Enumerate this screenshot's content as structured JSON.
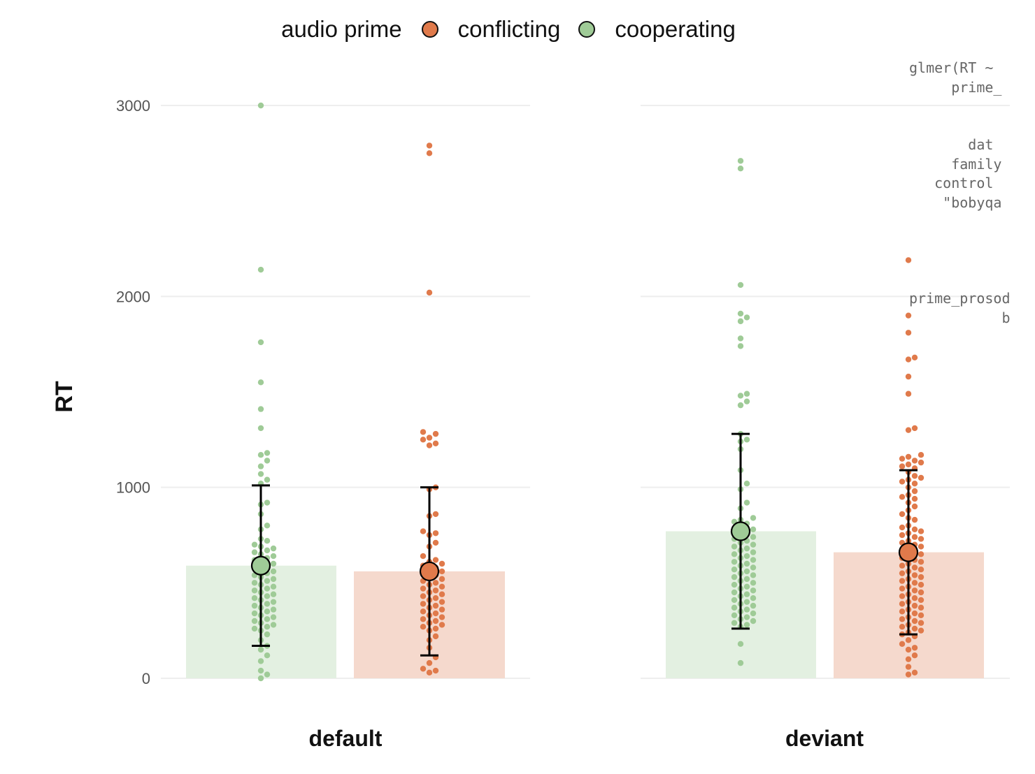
{
  "legend": {
    "title": "audio prime",
    "items": [
      {
        "label": "conflicting",
        "color": "#E07A4B"
      },
      {
        "label": "cooperating",
        "color": "#9FCB97"
      }
    ]
  },
  "code_lines": [
    "glmer(RT ~",
    "     prime_",
    "",
    "",
    "       dat",
    "     family",
    "   control",
    "    \"bobyqa",
    "",
    "",
    "",
    "",
    "prime_prosod",
    "           b"
  ],
  "chart_data": {
    "type": "bar",
    "xlabel": "",
    "ylabel": "RT",
    "ylim": [
      0,
      3000
    ],
    "yticks": [
      0,
      1000,
      2000,
      3000
    ],
    "grid": true,
    "legend_position": "top",
    "colors": {
      "cooperating": "#9FCB97",
      "conflicting": "#E07A4B"
    },
    "panels": [
      {
        "label": "default",
        "groups": [
          {
            "prime": "cooperating",
            "mean": 590,
            "error_low": 170,
            "error_high": 1010,
            "points": [
              3000,
              2140,
              1760,
              1550,
              1410,
              1310,
              1180,
              1170,
              1140,
              1110,
              1070,
              1040,
              1020,
              920,
              910,
              860,
              800,
              780,
              730,
              720,
              700,
              690,
              680,
              670,
              660,
              650,
              640,
              630,
              620,
              610,
              600,
              590,
              580,
              570,
              560,
              550,
              540,
              530,
              520,
              510,
              500,
              490,
              480,
              470,
              460,
              450,
              440,
              430,
              420,
              410,
              400,
              390,
              380,
              370,
              360,
              350,
              340,
              330,
              320,
              310,
              300,
              290,
              280,
              270,
              260,
              250,
              230,
              200,
              170,
              150,
              120,
              90,
              40,
              20,
              0
            ]
          },
          {
            "prime": "conflicting",
            "mean": 560,
            "error_low": 120,
            "error_high": 1000,
            "points": [
              2790,
              2750,
              2020,
              1290,
              1280,
              1260,
              1250,
              1230,
              1220,
              1000,
              990,
              860,
              850,
              770,
              760,
              750,
              710,
              690,
              640,
              620,
              610,
              600,
              590,
              580,
              570,
              560,
              550,
              540,
              530,
              520,
              510,
              500,
              490,
              480,
              470,
              460,
              450,
              440,
              430,
              420,
              410,
              400,
              390,
              380,
              370,
              360,
              350,
              340,
              330,
              320,
              310,
              300,
              290,
              280,
              270,
              260,
              250,
              220,
              200,
              160,
              110,
              80,
              50,
              40,
              30
            ]
          }
        ]
      },
      {
        "label": "deviant",
        "groups": [
          {
            "prime": "cooperating",
            "mean": 770,
            "error_low": 260,
            "error_high": 1280,
            "points": [
              2710,
              2670,
              2060,
              1910,
              1890,
              1870,
              1780,
              1740,
              1490,
              1480,
              1450,
              1430,
              1280,
              1250,
              1240,
              1200,
              1090,
              1020,
              990,
              920,
              890,
              840,
              830,
              820,
              810,
              790,
              780,
              770,
              760,
              750,
              740,
              730,
              720,
              710,
              700,
              690,
              680,
              670,
              660,
              650,
              640,
              630,
              620,
              610,
              600,
              590,
              580,
              570,
              560,
              550,
              540,
              530,
              520,
              510,
              500,
              490,
              480,
              470,
              460,
              450,
              440,
              430,
              420,
              410,
              400,
              390,
              380,
              370,
              360,
              350,
              340,
              330,
              320,
              310,
              300,
              290,
              280,
              270,
              180,
              80
            ]
          },
          {
            "prime": "conflicting",
            "mean": 660,
            "error_low": 230,
            "error_high": 1090,
            "points": [
              2190,
              1900,
              1810,
              1680,
              1670,
              1580,
              1490,
              1310,
              1300,
              1170,
              1160,
              1150,
              1140,
              1130,
              1120,
              1110,
              1100,
              1080,
              1060,
              1050,
              1040,
              1030,
              1020,
              1000,
              980,
              960,
              950,
              940,
              920,
              900,
              880,
              860,
              840,
              830,
              800,
              790,
              780,
              770,
              760,
              750,
              740,
              730,
              720,
              710,
              700,
              690,
              680,
              670,
              660,
              650,
              640,
              630,
              620,
              610,
              600,
              590,
              580,
              570,
              560,
              550,
              540,
              530,
              520,
              510,
              500,
              490,
              480,
              470,
              460,
              450,
              440,
              430,
              420,
              410,
              400,
              390,
              380,
              370,
              360,
              350,
              340,
              330,
              320,
              310,
              300,
              290,
              280,
              270,
              260,
              250,
              240,
              230,
              220,
              200,
              180,
              160,
              150,
              120,
              100,
              60,
              30,
              20
            ]
          }
        ]
      }
    ]
  }
}
